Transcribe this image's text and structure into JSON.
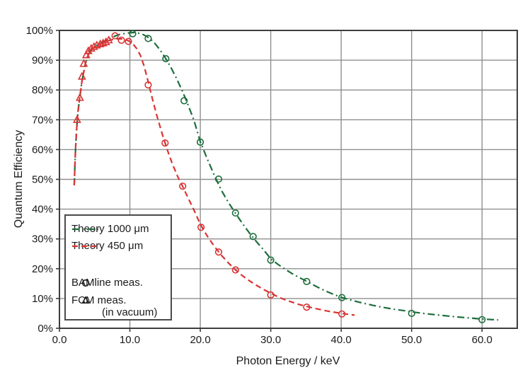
{
  "chart_data": {
    "type": "line",
    "title": "",
    "x_axis": {
      "title": "Photon Energy / keV",
      "range": [
        0,
        65
      ],
      "ticks": [
        {
          "value": 0,
          "label": "0.0"
        },
        {
          "value": 10,
          "label": "10.0"
        },
        {
          "value": 20,
          "label": "20.0"
        },
        {
          "value": 30,
          "label": "30.0"
        },
        {
          "value": 40,
          "label": "40.0"
        },
        {
          "value": 50,
          "label": "50.0"
        },
        {
          "value": 60,
          "label": "60.0"
        }
      ]
    },
    "y_axis": {
      "title": "Quantum Efficiency",
      "range": [
        0,
        100
      ],
      "ticks": [
        {
          "value": 0,
          "label": "0%"
        },
        {
          "value": 10,
          "label": "10%"
        },
        {
          "value": 20,
          "label": "20%"
        },
        {
          "value": 30,
          "label": "30%"
        },
        {
          "value": 40,
          "label": "40%"
        },
        {
          "value": 50,
          "label": "50%"
        },
        {
          "value": 60,
          "label": "60%"
        },
        {
          "value": 70,
          "label": "70%"
        },
        {
          "value": 80,
          "label": "80%"
        },
        {
          "value": 90,
          "label": "90%"
        },
        {
          "value": 100,
          "label": "100%"
        }
      ]
    },
    "grid": true,
    "colors": {
      "theory_1000": "#1c6e3c",
      "theory_450": "#d93434",
      "legend_marker": "#1a1a1a",
      "grid": "#8f8f8f",
      "frame": "#3d3d3d",
      "text": "#1a1a1a",
      "background": "#ffffff"
    },
    "series": [
      {
        "id": "theory-1000-um-line",
        "name": "Theory 1000 μm",
        "kind": "line",
        "style": "dashdot",
        "color": "theory_1000",
        "points": [
          [
            2.1,
            48
          ],
          [
            2.2,
            55
          ],
          [
            2.3,
            61
          ],
          [
            2.45,
            67
          ],
          [
            2.6,
            72
          ],
          [
            2.8,
            76
          ],
          [
            3.0,
            79.5
          ],
          [
            3.2,
            83
          ],
          [
            3.45,
            86
          ],
          [
            3.7,
            89
          ],
          [
            4.0,
            91.3
          ],
          [
            4.3,
            92.8
          ],
          [
            4.7,
            93.9
          ],
          [
            5.1,
            94.7
          ],
          [
            5.6,
            95.4
          ],
          [
            6.1,
            96.0
          ],
          [
            6.6,
            96.6
          ],
          [
            7.0,
            97.1
          ],
          [
            7.6,
            97.8
          ],
          [
            8.2,
            98.4
          ],
          [
            8.8,
            98.8
          ],
          [
            9.4,
            99.0
          ],
          [
            10.0,
            99.2
          ],
          [
            10.6,
            99.3
          ],
          [
            11.2,
            99.1
          ],
          [
            11.8,
            98.7
          ],
          [
            12.4,
            98.0
          ],
          [
            13.0,
            96.9
          ],
          [
            13.6,
            95.5
          ],
          [
            14.3,
            93.4
          ],
          [
            15.0,
            90.9
          ],
          [
            15.8,
            87.7
          ],
          [
            16.6,
            84.0
          ],
          [
            17.4,
            79.9
          ],
          [
            18.2,
            75.4
          ],
          [
            19.1,
            69.8
          ],
          [
            20.0,
            62.6
          ],
          [
            21.0,
            56.8
          ],
          [
            22.0,
            51.3
          ],
          [
            23.0,
            46.3
          ],
          [
            24.0,
            42.2
          ],
          [
            25.0,
            38.6
          ],
          [
            26.0,
            35.1
          ],
          [
            27.0,
            31.9
          ],
          [
            28.0,
            29.0
          ],
          [
            29.0,
            26.3
          ],
          [
            30.0,
            23.3
          ],
          [
            31.0,
            21.5
          ],
          [
            32.0,
            19.9
          ],
          [
            33.0,
            18.4
          ],
          [
            34.0,
            17.1
          ],
          [
            35.0,
            15.9
          ],
          [
            36.0,
            14.6
          ],
          [
            37.0,
            13.4
          ],
          [
            38.0,
            12.3
          ],
          [
            39.0,
            11.3
          ],
          [
            40.0,
            10.4
          ],
          [
            41.5,
            9.4
          ],
          [
            43.0,
            8.5
          ],
          [
            44.5,
            7.7
          ],
          [
            46.0,
            7.0
          ],
          [
            47.5,
            6.4
          ],
          [
            49.0,
            5.9
          ],
          [
            50.0,
            5.5
          ],
          [
            52.0,
            4.9
          ],
          [
            54.0,
            4.4
          ],
          [
            56.0,
            3.9
          ],
          [
            58.0,
            3.5
          ],
          [
            60.0,
            3.1
          ],
          [
            62.3,
            2.8
          ]
        ]
      },
      {
        "id": "theory-450-um-line",
        "name": "Theory 450 μm",
        "kind": "line",
        "style": "dashed",
        "color": "theory_450",
        "points": [
          [
            2.1,
            48
          ],
          [
            2.2,
            55
          ],
          [
            2.3,
            61
          ],
          [
            2.45,
            67
          ],
          [
            2.6,
            72
          ],
          [
            2.8,
            76
          ],
          [
            3.0,
            79.5
          ],
          [
            3.2,
            83
          ],
          [
            3.45,
            86
          ],
          [
            3.7,
            89
          ],
          [
            4.0,
            91.3
          ],
          [
            4.3,
            92.8
          ],
          [
            4.7,
            93.9
          ],
          [
            5.1,
            94.7
          ],
          [
            5.6,
            95.3
          ],
          [
            6.1,
            95.8
          ],
          [
            6.6,
            96.3
          ],
          [
            7.0,
            96.6
          ],
          [
            7.5,
            96.9
          ],
          [
            8.0,
            97.1
          ],
          [
            8.5,
            97.2
          ],
          [
            9.0,
            97.1
          ],
          [
            9.5,
            96.8
          ],
          [
            10.0,
            96.3
          ],
          [
            10.5,
            95.3
          ],
          [
            11.0,
            93.8
          ],
          [
            11.5,
            91.6
          ],
          [
            12.0,
            88.2
          ],
          [
            12.6,
            82.8
          ],
          [
            13.2,
            77.0
          ],
          [
            13.9,
            70.8
          ],
          [
            14.6,
            65.2
          ],
          [
            15.3,
            60.0
          ],
          [
            16.0,
            55.4
          ],
          [
            16.8,
            50.9
          ],
          [
            17.5,
            47.6
          ],
          [
            18.3,
            43.6
          ],
          [
            19.2,
            39.2
          ],
          [
            20.0,
            34.9
          ],
          [
            21.0,
            30.9
          ],
          [
            22.0,
            27.5
          ],
          [
            23.0,
            24.5
          ],
          [
            24.0,
            21.9
          ],
          [
            25.0,
            19.6
          ],
          [
            26.0,
            17.6
          ],
          [
            27.0,
            15.9
          ],
          [
            28.0,
            14.4
          ],
          [
            29.0,
            13.0
          ],
          [
            30.0,
            11.8
          ],
          [
            31.0,
            10.6
          ],
          [
            32.0,
            9.6
          ],
          [
            33.0,
            8.8
          ],
          [
            34.0,
            8.0
          ],
          [
            35.0,
            7.4
          ],
          [
            36.0,
            6.8
          ],
          [
            37.0,
            6.3
          ],
          [
            38.0,
            5.8
          ],
          [
            39.0,
            5.4
          ],
          [
            40.0,
            5.0
          ],
          [
            41.0,
            4.7
          ],
          [
            41.9,
            4.4
          ]
        ]
      },
      {
        "id": "bamline-meas-1000-um",
        "name": "BAMline meas.",
        "kind": "scatter",
        "marker": "circle",
        "color": "theory_1000",
        "points": [
          [
            10.4,
            98.9
          ],
          [
            12.6,
            97.3
          ],
          [
            15.1,
            90.5
          ],
          [
            17.7,
            76.4
          ],
          [
            20.0,
            62.5
          ],
          [
            22.6,
            50.1
          ],
          [
            25.0,
            38.7
          ],
          [
            27.5,
            30.8
          ],
          [
            30.0,
            22.9
          ],
          [
            35.1,
            15.7
          ],
          [
            40.1,
            10.3
          ],
          [
            50.0,
            5.0
          ],
          [
            60.0,
            2.9
          ]
        ]
      },
      {
        "id": "bamline-meas-450-um",
        "name": "BAMline meas.",
        "kind": "scatter",
        "marker": "circle",
        "color": "theory_450",
        "points": [
          [
            7.9,
            98.2
          ],
          [
            8.8,
            96.7
          ],
          [
            9.8,
            96.3
          ],
          [
            12.6,
            81.7
          ],
          [
            15.0,
            62.2
          ],
          [
            17.5,
            47.7
          ],
          [
            20.1,
            33.9
          ],
          [
            22.6,
            25.6
          ],
          [
            25.0,
            19.6
          ],
          [
            30.0,
            11.2
          ],
          [
            35.1,
            7.1
          ],
          [
            40.1,
            4.8
          ]
        ]
      },
      {
        "id": "fcm-meas-450-um",
        "name": "FCM meas. (in vacuum)",
        "kind": "scatter",
        "marker": "triangle",
        "color": "theory_450",
        "points": [
          [
            2.5,
            70.0
          ],
          [
            2.9,
            77.4
          ],
          [
            3.2,
            84.5
          ],
          [
            3.45,
            88.8
          ],
          [
            3.8,
            91.7
          ],
          [
            4.1,
            93.1
          ],
          [
            4.5,
            93.9
          ],
          [
            4.9,
            94.5
          ],
          [
            5.3,
            95.0
          ],
          [
            5.8,
            95.4
          ],
          [
            6.2,
            95.7
          ],
          [
            6.6,
            96.1
          ],
          [
            7.0,
            96.7
          ]
        ]
      }
    ],
    "legend": {
      "position": "lower-left",
      "entries": [
        {
          "sample": "line",
          "style": "dashdot",
          "color": "theory_1000",
          "label": "Theory 1000 μm"
        },
        {
          "sample": "line",
          "style": "dashed",
          "color": "theory_450",
          "label": "Theory 450 μm"
        },
        {
          "sample": "marker",
          "marker": "circle",
          "color": "legend_marker",
          "label": "BAMline meas."
        },
        {
          "sample": "marker",
          "marker": "triangle",
          "color": "legend_marker",
          "label": "FCM meas.",
          "label2": "(in vacuum)"
        }
      ]
    }
  }
}
